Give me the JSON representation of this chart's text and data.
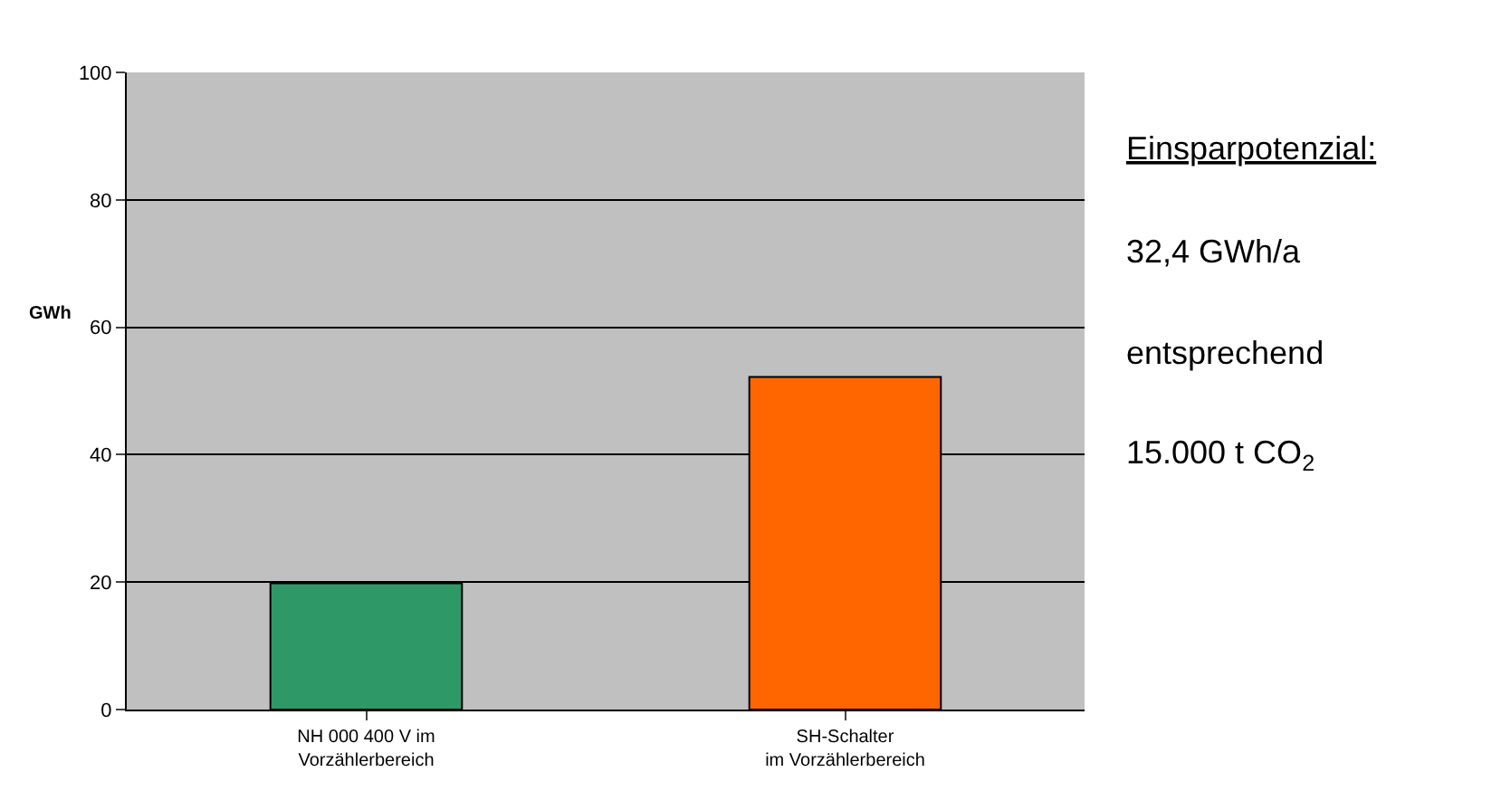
{
  "chart_data": {
    "type": "bar",
    "ylabel": "GWh",
    "categories": [
      "NH 000 400 V im\nVorzählerbereich",
      "SH-Schalter\nim Vorzählerbereich"
    ],
    "values": [
      19.8,
      52.2
    ],
    "colors": [
      "#2e9966",
      "#ff6600"
    ],
    "ylim": [
      0,
      100
    ],
    "yticks": [
      0,
      20,
      40,
      60,
      80,
      100
    ],
    "grid": "y",
    "annotations": [
      "Einsparpotenzial:",
      "32,4 GWh/a",
      "entsprechend",
      "15.000 t CO$_{2}$"
    ]
  }
}
